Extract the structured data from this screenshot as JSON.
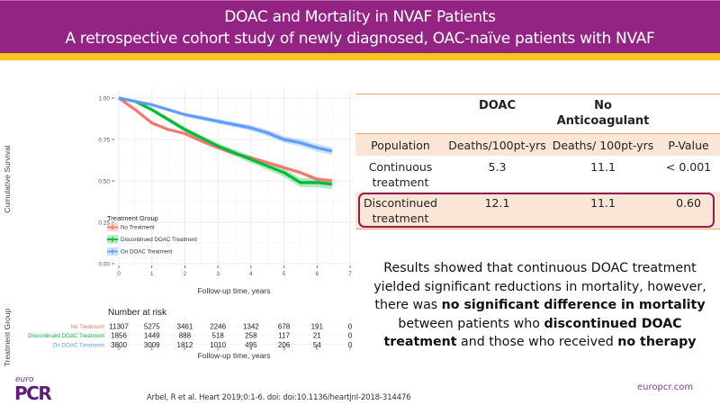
{
  "header": {
    "title": "DOAC and Mortality in NVAF Patients",
    "subtitle": "A retrospective cohort study of newly diagnosed, OAC-naïve patients with NVAF",
    "colors": {
      "banner": "#942483",
      "stripe": "#f5c518"
    }
  },
  "chart_data": [
    {
      "type": "line",
      "title": "",
      "xlabel": "Follow-up time, years",
      "ylabel": "Cumulative Survival",
      "xlim": [
        0,
        7
      ],
      "ylim": [
        0,
        1
      ],
      "xticks": [
        "0",
        "1",
        "2",
        "3",
        "4",
        "5",
        "6",
        "7"
      ],
      "yticks": [
        "0.00",
        "0.25",
        "0.50",
        "0.75",
        "1.00"
      ],
      "grid": true,
      "legend": {
        "title": "Treatment Group",
        "placement": "bottom-left"
      },
      "x": [
        0,
        0.5,
        1,
        1.5,
        2,
        2.5,
        3,
        3.5,
        4,
        4.5,
        5,
        5.5,
        6,
        6.45
      ],
      "series": [
        {
          "name": "No Treatment",
          "color": "#f8766d",
          "values": [
            1.0,
            0.93,
            0.85,
            0.81,
            0.786,
            0.74,
            0.7,
            0.665,
            0.64,
            0.61,
            0.58,
            0.55,
            0.51,
            0.5
          ],
          "ci_halfwidth": 0.01
        },
        {
          "name": "Discontinued DOAC Treatment",
          "color": "#00ba38",
          "values": [
            1.0,
            0.98,
            0.93,
            0.87,
            0.81,
            0.76,
            0.71,
            0.67,
            0.63,
            0.59,
            0.55,
            0.49,
            0.49,
            0.48
          ],
          "ci_halfwidth": 0.025
        },
        {
          "name": "On DOAC Treatment",
          "color": "#619cff",
          "values": [
            1.0,
            0.98,
            0.96,
            0.93,
            0.9,
            0.88,
            0.86,
            0.84,
            0.82,
            0.79,
            0.75,
            0.73,
            0.7,
            0.68
          ],
          "ci_halfwidth": 0.02
        }
      ]
    },
    {
      "type": "table",
      "title": "Number at risk",
      "ylabel": "Treatment Group",
      "xlabel": "Follow-up time, years",
      "columns": [
        "0",
        "1",
        "2",
        "3",
        "4",
        "5",
        "6",
        "7"
      ],
      "rows": [
        {
          "name": "No Treatment",
          "color": "#f8766d",
          "values": [
            "11307",
            "5275",
            "3461",
            "2246",
            "1342",
            "678",
            "191",
            "0"
          ]
        },
        {
          "name": "Discontinued DOAC Treatment",
          "color": "#00ba38",
          "values": [
            "1856",
            "1449",
            "888",
            "518",
            "258",
            "117",
            "21",
            "0"
          ]
        },
        {
          "name": "On DOAC Treatment",
          "color": "#619cff",
          "values": [
            "3800",
            "3009",
            "1812",
            "1010",
            "495",
            "206",
            "54",
            "0"
          ]
        }
      ]
    }
  ],
  "table": {
    "header": [
      "",
      "DOAC",
      "No\nAnticoagulant",
      ""
    ],
    "subheader": [
      "Population",
      "Deaths/100pt-yrs",
      "Deaths/ 100pt-yrs",
      "P-Value"
    ],
    "rows": [
      {
        "population": "Continuous treatment",
        "doac": "5.3",
        "no_anticoagulant": "11.1",
        "p_value": "< 0.001",
        "highlighted": false
      },
      {
        "population": "Discontinued treatment",
        "doac": "12.1",
        "no_anticoagulant": "11.1",
        "p_value": "0.60",
        "highlighted": true
      }
    ]
  },
  "summary": {
    "segments": [
      {
        "text": "Results showed that continuous DOAC treatment yielded significant reductions in mortality, however, there was ",
        "bold": false
      },
      {
        "text": "no significant difference in mortality",
        "bold": true
      },
      {
        "text": " between patients who ",
        "bold": false
      },
      {
        "text": "discontinued DOAC treatment",
        "bold": true
      },
      {
        "text": " and those who received ",
        "bold": false
      },
      {
        "text": "no therapy",
        "bold": true
      }
    ]
  },
  "footer": {
    "citation": "Arbel, R et al. Heart 2019;0:1-6. doi: doi:10.1136/heartjnl-2018-314476",
    "website": "europcr.com",
    "logo_small": "euro",
    "logo_main": "PCR"
  }
}
